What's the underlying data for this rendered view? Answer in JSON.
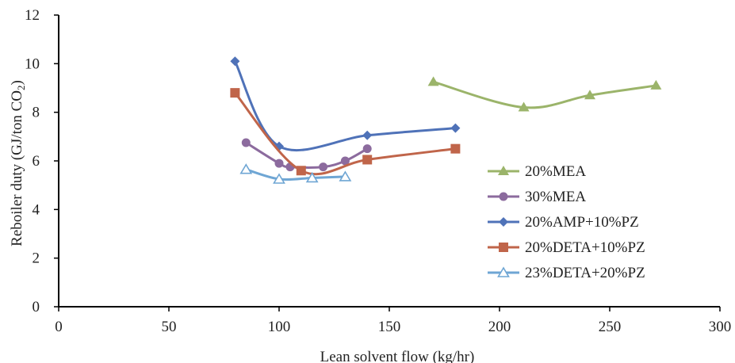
{
  "chart_data": {
    "type": "line",
    "title": "",
    "xlabel": "Lean solvent flow (kg/hr)",
    "ylabel": "Reboiler duty (GJ/ton CO",
    "ylabel_sub": "2",
    "ylabel_close": ")",
    "xlim": [
      0,
      300
    ],
    "ylim": [
      0,
      12
    ],
    "x_ticks": [
      0,
      50,
      100,
      150,
      200,
      250,
      300
    ],
    "y_ticks": [
      0,
      2,
      4,
      6,
      8,
      10,
      12
    ],
    "grid": false,
    "legend_position": "right",
    "series": [
      {
        "name": "20%MEA",
        "marker": "triangle",
        "color": "#9bb46a",
        "x": [
          170,
          211,
          241,
          271
        ],
        "y": [
          9.25,
          8.2,
          8.7,
          9.1
        ]
      },
      {
        "name": "30%MEA",
        "marker": "circle",
        "color": "#8c6b9e",
        "x": [
          85,
          100,
          105,
          120,
          130,
          140
        ],
        "y": [
          6.75,
          5.9,
          5.75,
          5.75,
          6.0,
          6.5
        ]
      },
      {
        "name": "20%AMP+10%PZ",
        "marker": "diamond",
        "color": "#4f72b8",
        "x": [
          80,
          100,
          140,
          180
        ],
        "y": [
          10.1,
          6.6,
          7.05,
          7.35
        ]
      },
      {
        "name": "20%DETA+10%PZ",
        "marker": "square",
        "color": "#c0654a",
        "x": [
          80,
          110,
          140,
          180
        ],
        "y": [
          8.8,
          5.6,
          6.05,
          6.5
        ]
      },
      {
        "name": "23%DETA+20%PZ",
        "marker": "open-triangle",
        "color": "#6fa6d4",
        "x": [
          85,
          100,
          115,
          130
        ],
        "y": [
          5.65,
          5.25,
          5.3,
          5.35
        ]
      }
    ]
  }
}
